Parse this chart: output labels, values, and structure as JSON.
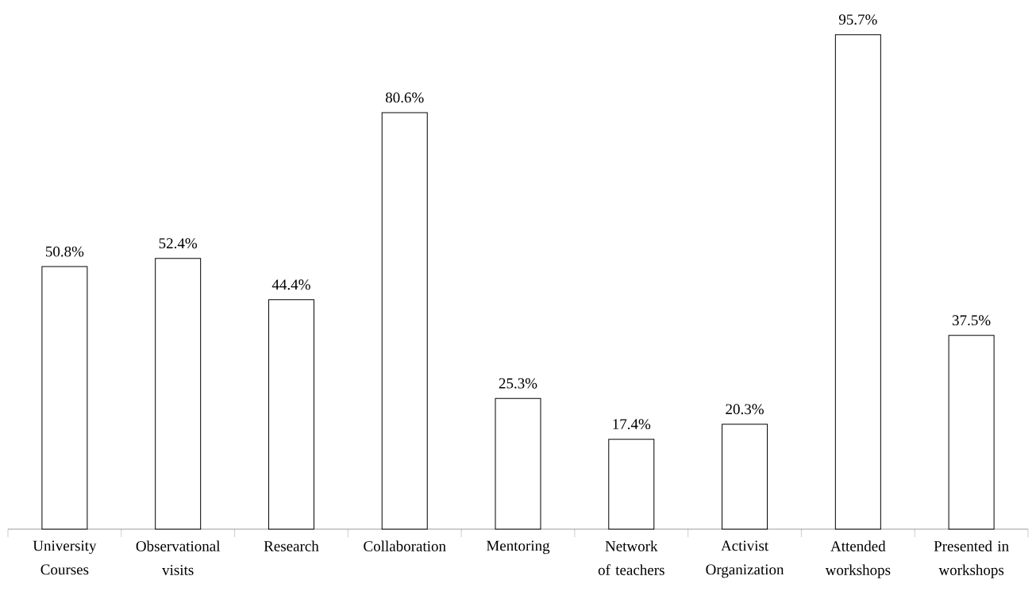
{
  "chart_data": {
    "type": "bar",
    "categories": [
      "University Courses",
      "Observational visits",
      "Research",
      "Collaboration",
      "Mentoring",
      "Network of teachers",
      "Activist Organization",
      "Attended workshops",
      "Presented in workshops"
    ],
    "values": [
      50.8,
      52.4,
      44.4,
      80.6,
      25.3,
      17.4,
      20.3,
      95.7,
      37.5
    ],
    "value_labels": [
      "50.8%",
      "52.4%",
      "44.4%",
      "80.6%",
      "25.3%",
      "17.4%",
      "20.3%",
      "95.7%",
      "37.5%"
    ],
    "color": "#ffffff"
  }
}
